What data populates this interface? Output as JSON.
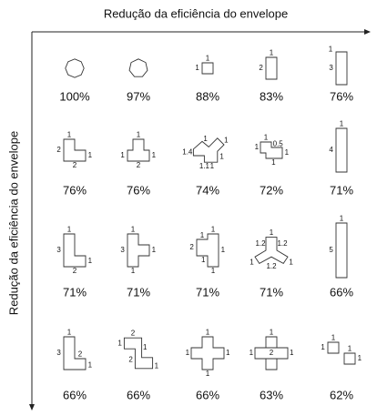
{
  "axis_top": "Redução da eficiência do envelope",
  "axis_left": "Redução da eficiência do envelope",
  "rows": [
    [
      {
        "percent": "100%",
        "labels": []
      },
      {
        "percent": "97%",
        "labels": []
      },
      {
        "percent": "88%",
        "labels": [
          "1",
          "1"
        ]
      },
      {
        "percent": "83%",
        "labels": [
          "1",
          "2"
        ]
      },
      {
        "percent": "76%",
        "labels": [
          "1",
          "3"
        ]
      }
    ],
    [
      {
        "percent": "76%",
        "labels": [
          "1",
          "2",
          "1",
          "2"
        ]
      },
      {
        "percent": "76%",
        "labels": [
          "1",
          "1",
          "1",
          "2"
        ]
      },
      {
        "percent": "74%",
        "labels": [
          "1",
          "1.4",
          "1",
          "1",
          "1.1",
          "1"
        ]
      },
      {
        "percent": "72%",
        "labels": [
          "1",
          "0.5",
          "1",
          "1",
          "1"
        ]
      },
      {
        "percent": "71%",
        "labels": [
          "1",
          "4"
        ]
      }
    ],
    [
      {
        "percent": "71%",
        "labels": [
          "1",
          "3",
          "1",
          "2"
        ]
      },
      {
        "percent": "71%",
        "labels": [
          "1",
          "3",
          "1",
          "1"
        ]
      },
      {
        "percent": "71%",
        "labels": [
          "1",
          "2",
          "1",
          "1",
          "1",
          "1"
        ]
      },
      {
        "percent": "71%",
        "labels": [
          "1",
          "1.2",
          "1.2",
          "1",
          "1",
          "1.2"
        ]
      },
      {
        "percent": "66%",
        "labels": [
          "1",
          "5"
        ]
      }
    ],
    [
      {
        "percent": "66%",
        "labels": [
          "1",
          "3",
          "2",
          "1"
        ]
      },
      {
        "percent": "66%",
        "labels": [
          "2",
          "1",
          "1",
          "2",
          "1"
        ]
      },
      {
        "percent": "66%",
        "labels": [
          "1",
          "1",
          "1",
          "1"
        ]
      },
      {
        "percent": "63%",
        "labels": [
          "1",
          "1",
          "2",
          "1"
        ]
      },
      {
        "percent": "62%",
        "labels": [
          "1",
          "1",
          "1",
          "1"
        ]
      }
    ]
  ]
}
